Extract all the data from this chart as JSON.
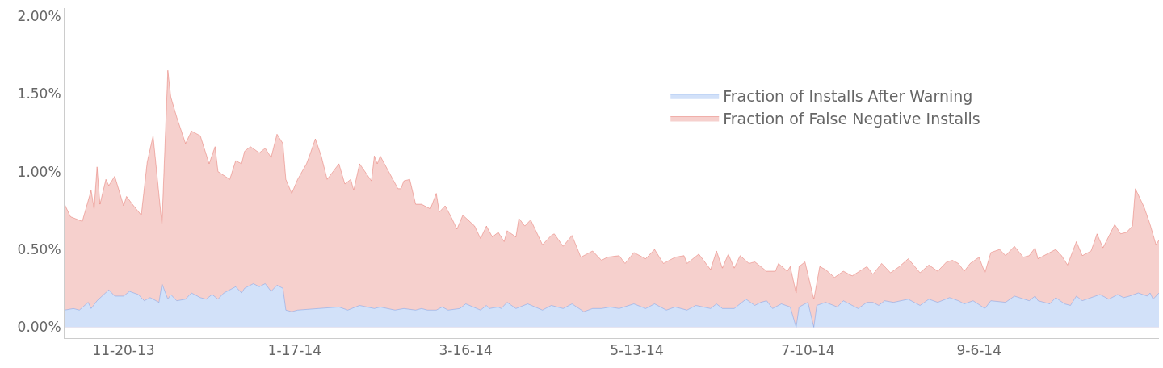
{
  "chart_data": {
    "type": "area",
    "xlim": [
      "2013-10-31",
      "2014-11-06"
    ],
    "xticks": [
      {
        "value": "2013-11-20",
        "label": "11-20-13"
      },
      {
        "value": "2014-01-17",
        "label": "1-17-14"
      },
      {
        "value": "2014-03-16",
        "label": "3-16-14"
      },
      {
        "value": "2014-05-13",
        "label": "5-13-14"
      },
      {
        "value": "2014-07-10",
        "label": "7-10-14"
      },
      {
        "value": "2014-09-06",
        "label": "9-6-14"
      }
    ],
    "ylim": [
      -0.07,
      2.05
    ],
    "yticks": [
      {
        "value": 0,
        "label": "0.00%"
      },
      {
        "value": 0.5,
        "label": "0.50%"
      },
      {
        "value": 1.0,
        "label": "1.00%"
      },
      {
        "value": 1.5,
        "label": "1.50%"
      },
      {
        "value": 2.0,
        "label": "2.00%"
      }
    ],
    "legend": "top right",
    "marker": "none",
    "series": [
      {
        "name": "Fraction of Installs After Warning",
        "color": "#4a86e8",
        "x": [
          "2013-10-31",
          "2013-11-03",
          "2013-11-05",
          "2013-11-08",
          "2013-11-09",
          "2013-11-11",
          "2013-11-15",
          "2013-11-17",
          "2013-11-20",
          "2013-11-22",
          "2013-11-25",
          "2013-11-27",
          "2013-11-29",
          "2013-12-02",
          "2013-12-03",
          "2013-12-05",
          "2013-12-06",
          "2013-12-08",
          "2013-12-11",
          "2013-12-13",
          "2013-12-16",
          "2013-12-18",
          "2013-12-20",
          "2013-12-22",
          "2013-12-24",
          "2013-12-28",
          "2013-12-30",
          "2013-12-31",
          "2014-01-03",
          "2014-01-05",
          "2014-01-07",
          "2014-01-09",
          "2014-01-11",
          "2014-01-13",
          "2014-01-14",
          "2014-01-16",
          "2014-01-18",
          "2014-01-25",
          "2014-02-01",
          "2014-02-04",
          "2014-02-08",
          "2014-02-13",
          "2014-02-15",
          "2014-02-20",
          "2014-02-23",
          "2014-02-27",
          "2014-03-01",
          "2014-03-03",
          "2014-03-06",
          "2014-03-08",
          "2014-03-10",
          "2014-03-14",
          "2014-03-16",
          "2014-03-21",
          "2014-03-23",
          "2014-03-24",
          "2014-03-27",
          "2014-03-28",
          "2014-03-30",
          "2014-04-02",
          "2014-04-06",
          "2014-04-11",
          "2014-04-14",
          "2014-04-18",
          "2014-04-21",
          "2014-04-25",
          "2014-04-28",
          "2014-05-01",
          "2014-05-04",
          "2014-05-07",
          "2014-05-12",
          "2014-05-16",
          "2014-05-19",
          "2014-05-23",
          "2014-05-26",
          "2014-05-30",
          "2014-06-02",
          "2014-06-07",
          "2014-06-09",
          "2014-06-11",
          "2014-06-15",
          "2014-06-19",
          "2014-06-22",
          "2014-06-24",
          "2014-06-26",
          "2014-06-28",
          "2014-07-01",
          "2014-07-04",
          "2014-07-06",
          "2014-07-07",
          "2014-07-10",
          "2014-07-12",
          "2014-07-13",
          "2014-07-16",
          "2014-07-20",
          "2014-07-22",
          "2014-07-27",
          "2014-07-30",
          "2014-08-01",
          "2014-08-03",
          "2014-08-05",
          "2014-08-08",
          "2014-08-13",
          "2014-08-17",
          "2014-08-20",
          "2014-08-23",
          "2014-08-27",
          "2014-08-30",
          "2014-09-01",
          "2014-09-04",
          "2014-09-08",
          "2014-09-10",
          "2014-09-15",
          "2014-09-18",
          "2014-09-23",
          "2014-09-25",
          "2014-09-26",
          "2014-09-30",
          "2014-10-02",
          "2014-10-05",
          "2014-10-07",
          "2014-10-09",
          "2014-10-11",
          "2014-10-17",
          "2014-10-20",
          "2014-10-23",
          "2014-10-25",
          "2014-10-27",
          "2014-10-30",
          "2014-11-02",
          "2014-11-03",
          "2014-11-04",
          "2014-11-06"
        ],
        "values": [
          0.11,
          0.12,
          0.11,
          0.16,
          0.12,
          0.17,
          0.24,
          0.2,
          0.2,
          0.23,
          0.21,
          0.17,
          0.19,
          0.16,
          0.28,
          0.18,
          0.21,
          0.17,
          0.18,
          0.22,
          0.19,
          0.18,
          0.21,
          0.18,
          0.22,
          0.26,
          0.22,
          0.25,
          0.28,
          0.26,
          0.28,
          0.23,
          0.27,
          0.25,
          0.11,
          0.1,
          0.11,
          0.12,
          0.13,
          0.11,
          0.14,
          0.12,
          0.13,
          0.11,
          0.12,
          0.11,
          0.12,
          0.11,
          0.11,
          0.13,
          0.11,
          0.12,
          0.15,
          0.11,
          0.14,
          0.12,
          0.13,
          0.12,
          0.16,
          0.12,
          0.15,
          0.11,
          0.14,
          0.12,
          0.15,
          0.1,
          0.12,
          0.12,
          0.13,
          0.12,
          0.15,
          0.12,
          0.15,
          0.11,
          0.13,
          0.11,
          0.14,
          0.12,
          0.15,
          0.12,
          0.12,
          0.18,
          0.14,
          0.16,
          0.17,
          0.12,
          0.15,
          0.13,
          0.0,
          0.13,
          0.16,
          0.0,
          0.14,
          0.16,
          0.13,
          0.17,
          0.12,
          0.16,
          0.16,
          0.14,
          0.17,
          0.16,
          0.18,
          0.14,
          0.18,
          0.16,
          0.19,
          0.17,
          0.15,
          0.17,
          0.12,
          0.17,
          0.16,
          0.2,
          0.17,
          0.2,
          0.17,
          0.15,
          0.19,
          0.15,
          0.14,
          0.2,
          0.17,
          0.21,
          0.18,
          0.21,
          0.19,
          0.2,
          0.22,
          0.2,
          0.22,
          0.18,
          0.22
        ]
      },
      {
        "name": "Fraction of False Negative Installs",
        "color": "#db4437",
        "x": [
          "2013-10-31",
          "2013-11-02",
          "2013-11-06",
          "2013-11-09",
          "2013-11-10",
          "2013-11-11",
          "2013-11-12",
          "2013-11-14",
          "2013-11-15",
          "2013-11-17",
          "2013-11-20",
          "2013-11-21",
          "2013-11-23",
          "2013-11-26",
          "2013-11-28",
          "2013-11-30",
          "2013-12-03",
          "2013-12-05",
          "2013-12-06",
          "2013-12-08",
          "2013-12-11",
          "2013-12-13",
          "2013-12-16",
          "2013-12-19",
          "2013-12-21",
          "2013-12-22",
          "2013-12-26",
          "2013-12-28",
          "2013-12-30",
          "2013-12-31",
          "2014-01-02",
          "2014-01-05",
          "2014-01-07",
          "2014-01-09",
          "2014-01-11",
          "2014-01-13",
          "2014-01-14",
          "2014-01-16",
          "2014-01-18",
          "2014-01-21",
          "2014-01-22",
          "2014-01-24",
          "2014-01-26",
          "2014-01-28",
          "2014-02-01",
          "2014-02-03",
          "2014-02-05",
          "2014-02-06",
          "2014-02-08",
          "2014-02-12",
          "2014-02-13",
          "2014-02-14",
          "2014-02-15",
          "2014-02-17",
          "2014-02-21",
          "2014-02-22",
          "2014-02-23",
          "2014-02-25",
          "2014-02-27",
          "2014-03-01",
          "2014-03-04",
          "2014-03-06",
          "2014-03-07",
          "2014-03-09",
          "2014-03-11",
          "2014-03-13",
          "2014-03-15",
          "2014-03-19",
          "2014-03-21",
          "2014-03-23",
          "2014-03-25",
          "2014-03-27",
          "2014-03-29",
          "2014-03-30",
          "2014-04-02",
          "2014-04-03",
          "2014-04-05",
          "2014-04-07",
          "2014-04-11",
          "2014-04-14",
          "2014-04-15",
          "2014-04-18",
          "2014-04-21",
          "2014-04-24",
          "2014-04-28",
          "2014-05-01",
          "2014-05-03",
          "2014-05-07",
          "2014-05-09",
          "2014-05-12",
          "2014-05-16",
          "2014-05-19",
          "2014-05-22",
          "2014-05-26",
          "2014-05-29",
          "2014-05-30",
          "2014-06-03",
          "2014-06-07",
          "2014-06-09",
          "2014-06-11",
          "2014-06-13",
          "2014-06-15",
          "2014-06-17",
          "2014-06-20",
          "2014-06-22",
          "2014-06-26",
          "2014-06-29",
          "2014-06-30",
          "2014-07-03",
          "2014-07-04",
          "2014-07-06",
          "2014-07-07",
          "2014-07-09",
          "2014-07-12",
          "2014-07-14",
          "2014-07-16",
          "2014-07-19",
          "2014-07-22",
          "2014-07-25",
          "2014-07-30",
          "2014-08-01",
          "2014-08-04",
          "2014-08-07",
          "2014-08-10",
          "2014-08-13",
          "2014-08-17",
          "2014-08-20",
          "2014-08-23",
          "2014-08-26",
          "2014-08-28",
          "2014-08-30",
          "2014-09-01",
          "2014-09-03",
          "2014-09-06",
          "2014-09-08",
          "2014-09-10",
          "2014-09-13",
          "2014-09-15",
          "2014-09-18",
          "2014-09-21",
          "2014-09-23",
          "2014-09-25",
          "2014-09-26",
          "2014-10-02",
          "2014-10-04",
          "2014-10-06",
          "2014-10-09",
          "2014-10-11",
          "2014-10-14",
          "2014-10-16",
          "2014-10-18",
          "2014-10-22",
          "2014-10-24",
          "2014-10-26",
          "2014-10-28",
          "2014-10-29",
          "2014-11-01",
          "2014-11-03",
          "2014-11-05",
          "2014-11-06"
        ],
        "values": [
          0.79,
          0.71,
          0.68,
          0.88,
          0.76,
          1.03,
          0.79,
          0.95,
          0.91,
          0.97,
          0.78,
          0.84,
          0.79,
          0.72,
          1.06,
          1.23,
          0.66,
          1.65,
          1.48,
          1.35,
          1.18,
          1.26,
          1.23,
          1.05,
          1.16,
          1.0,
          0.95,
          1.07,
          1.05,
          1.13,
          1.16,
          1.12,
          1.15,
          1.09,
          1.24,
          1.18,
          0.95,
          0.86,
          0.95,
          1.05,
          1.1,
          1.21,
          1.1,
          0.95,
          1.05,
          0.92,
          0.95,
          0.88,
          1.05,
          0.94,
          1.1,
          1.05,
          1.1,
          1.03,
          0.89,
          0.89,
          0.94,
          0.95,
          0.79,
          0.79,
          0.76,
          0.86,
          0.74,
          0.78,
          0.71,
          0.63,
          0.72,
          0.65,
          0.57,
          0.65,
          0.58,
          0.61,
          0.55,
          0.62,
          0.58,
          0.7,
          0.65,
          0.69,
          0.53,
          0.59,
          0.6,
          0.52,
          0.59,
          0.45,
          0.49,
          0.43,
          0.45,
          0.46,
          0.41,
          0.48,
          0.44,
          0.5,
          0.41,
          0.45,
          0.46,
          0.41,
          0.47,
          0.37,
          0.49,
          0.38,
          0.47,
          0.38,
          0.46,
          0.41,
          0.42,
          0.36,
          0.36,
          0.41,
          0.36,
          0.39,
          0.22,
          0.39,
          0.42,
          0.18,
          0.39,
          0.37,
          0.32,
          0.36,
          0.33,
          0.39,
          0.34,
          0.41,
          0.35,
          0.39,
          0.44,
          0.35,
          0.4,
          0.36,
          0.42,
          0.43,
          0.41,
          0.36,
          0.41,
          0.45,
          0.35,
          0.48,
          0.5,
          0.46,
          0.52,
          0.45,
          0.46,
          0.51,
          0.44,
          0.5,
          0.46,
          0.4,
          0.55,
          0.46,
          0.49,
          0.6,
          0.51,
          0.66,
          0.6,
          0.61,
          0.65,
          0.89,
          0.77,
          0.66,
          0.53,
          0.56
        ]
      }
    ]
  }
}
